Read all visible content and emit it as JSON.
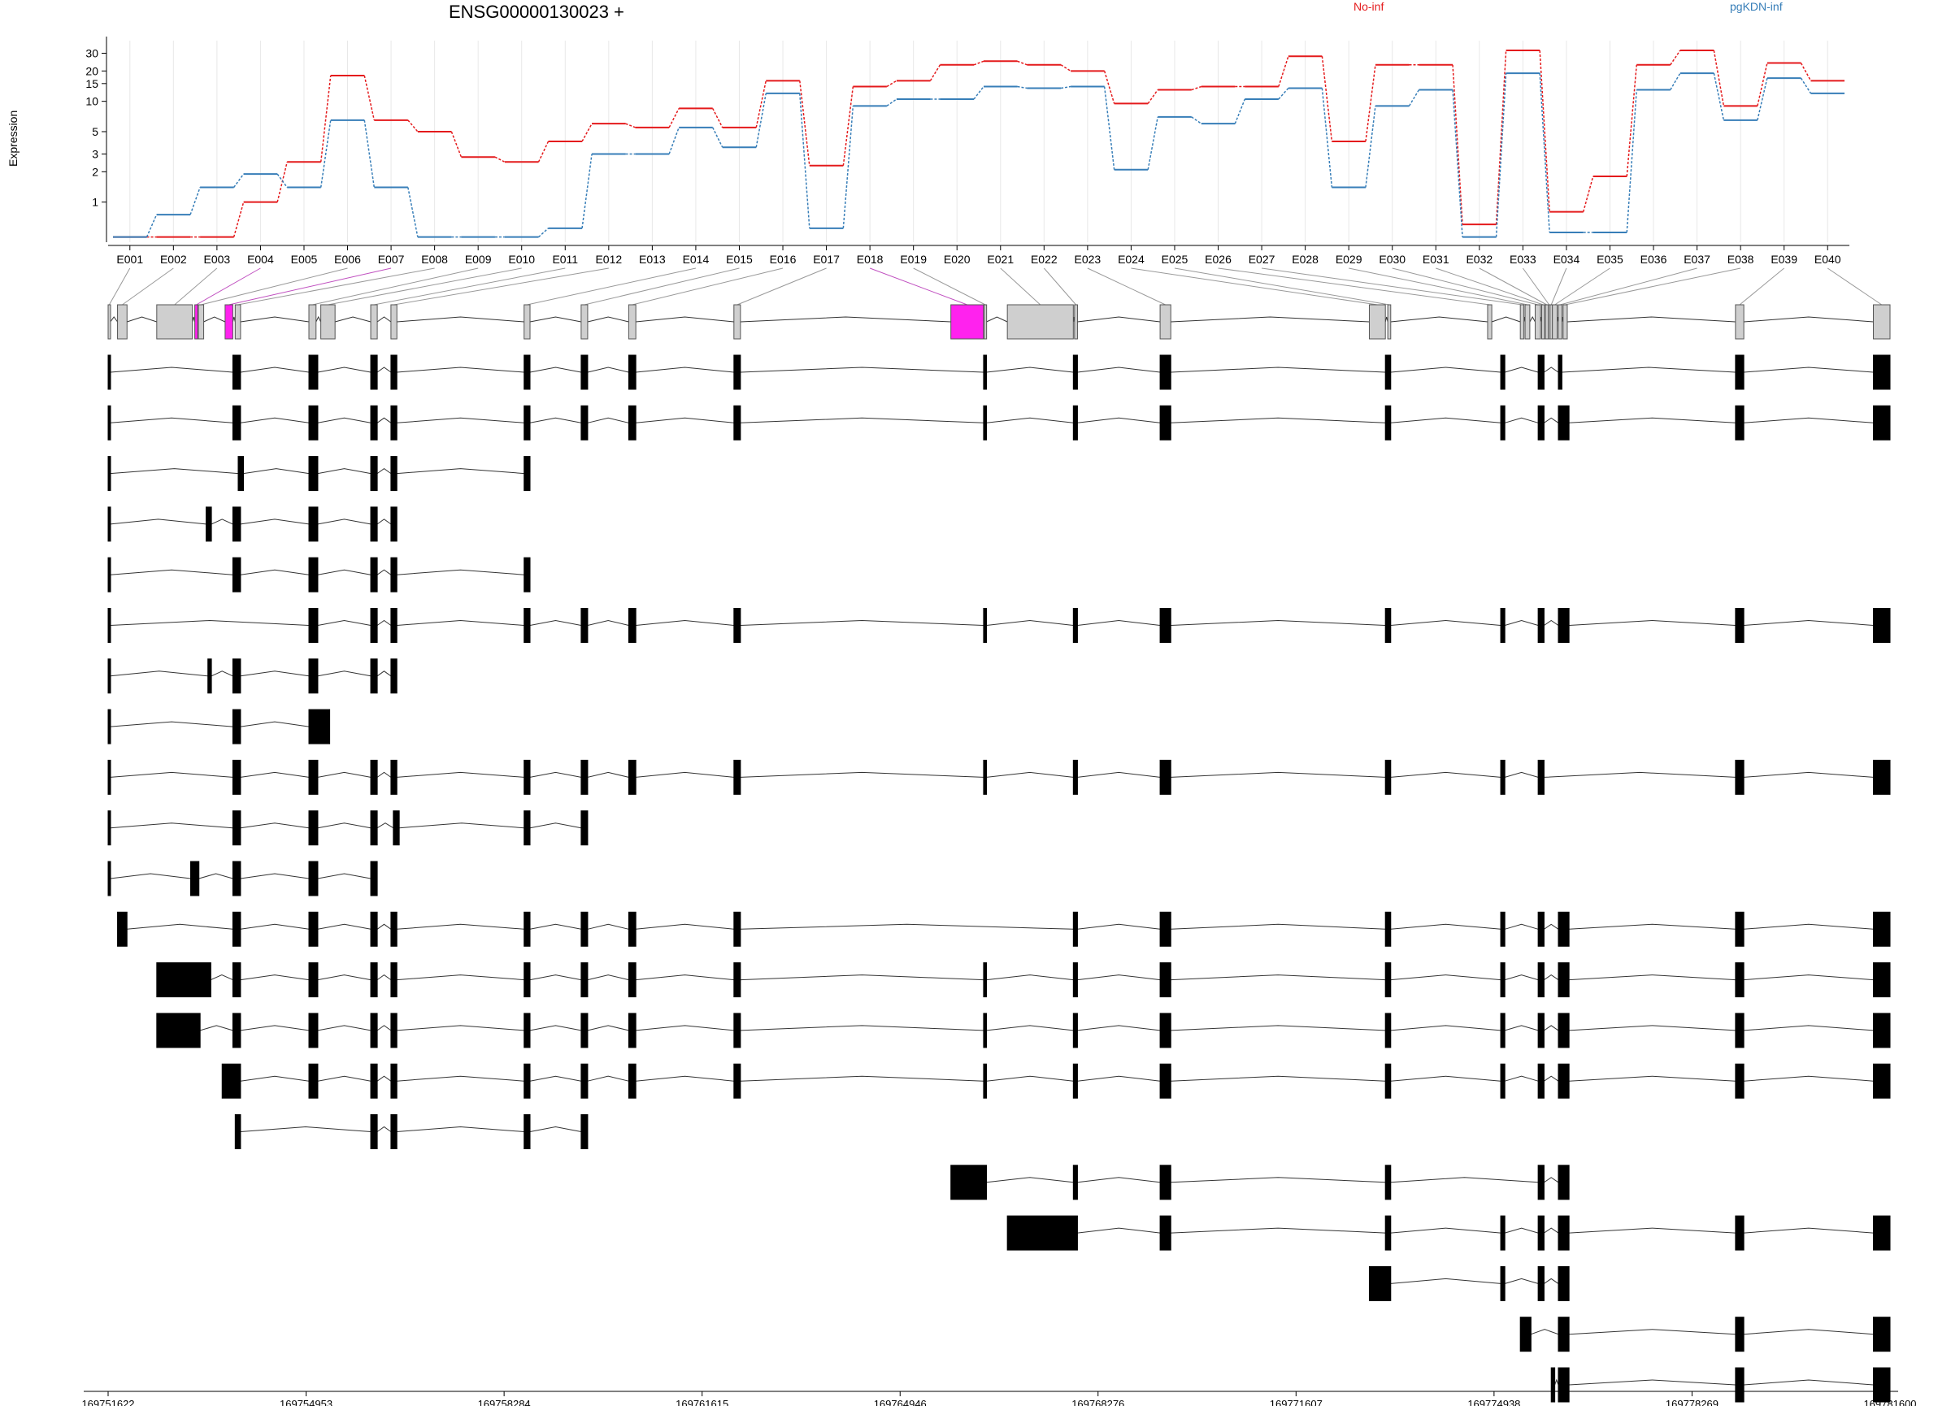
{
  "chart_data": {
    "type": "line",
    "title": "ENSG00000130023 +",
    "ylabel": "Expression",
    "yscale": "log",
    "yticks": [
      1,
      2,
      3,
      5,
      10,
      15,
      20,
      30
    ],
    "ylim": [
      0.4,
      40
    ],
    "legend": [
      {
        "name": "No-inf",
        "color": "#e41a1c"
      },
      {
        "name": "pgKDN-inf",
        "color": "#377eb8"
      }
    ],
    "categories": [
      "E001",
      "E002",
      "E003",
      "E004",
      "E005",
      "E006",
      "E007",
      "E008",
      "E009",
      "E010",
      "E011",
      "E012",
      "E013",
      "E014",
      "E015",
      "E016",
      "E017",
      "E018",
      "E019",
      "E020",
      "E021",
      "E022",
      "E023",
      "E024",
      "E025",
      "E026",
      "E027",
      "E028",
      "E029",
      "E030",
      "E031",
      "E032",
      "E033",
      "E034",
      "E035",
      "E036",
      "E037",
      "E038",
      "E039",
      "E040"
    ],
    "series": [
      {
        "name": "No-inf",
        "values": [
          0.45,
          0.45,
          0.45,
          1.0,
          2.5,
          18,
          6.5,
          5.0,
          2.8,
          2.5,
          4.0,
          6.0,
          5.5,
          8.5,
          5.5,
          16,
          2.3,
          14,
          16,
          23,
          25,
          23,
          20,
          9.5,
          13,
          14,
          14,
          28,
          4.0,
          23,
          23,
          0.6,
          32,
          0.8,
          1.8,
          23,
          32,
          9.0,
          24,
          16
        ]
      },
      {
        "name": "pgKDN-inf",
        "values": [
          0.45,
          0.75,
          1.4,
          1.9,
          1.4,
          6.5,
          1.4,
          0.45,
          0.45,
          0.45,
          0.55,
          3.0,
          3.0,
          5.5,
          3.5,
          12,
          0.55,
          9,
          10.5,
          10.5,
          14,
          13.5,
          14,
          2.1,
          7,
          6,
          10.5,
          13.5,
          1.4,
          9,
          13,
          0.45,
          19,
          0.5,
          0.5,
          13,
          19,
          6.5,
          17,
          12
        ]
      }
    ],
    "genomic_axis": {
      "start": 169751622,
      "end": 169781600,
      "ticks": [
        169751622,
        169754953,
        169758284,
        169761615,
        169764946,
        169768276,
        169771607,
        169774938,
        169778269,
        169781600
      ]
    },
    "exon_bins": [
      [
        169751622,
        169751660
      ],
      [
        169751780,
        169751940
      ],
      [
        169752440,
        169753040
      ],
      [
        169753080,
        169753130
      ],
      [
        169753140,
        169753230
      ],
      [
        169753590,
        169753720
      ],
      [
        169753760,
        169753850
      ],
      [
        169755000,
        169755120
      ],
      [
        169755200,
        169755440
      ],
      [
        169756040,
        169756150
      ],
      [
        169756380,
        169756480
      ],
      [
        169758620,
        169758720
      ],
      [
        169759580,
        169759690
      ],
      [
        169760380,
        169760500
      ],
      [
        169762150,
        169762260
      ],
      [
        169765800,
        169766350
      ],
      [
        169766360,
        169766400
      ],
      [
        169766750,
        169767860
      ],
      [
        169767880,
        169767930
      ],
      [
        169769320,
        169769500
      ],
      [
        169772840,
        169773110
      ],
      [
        169773150,
        169773200
      ],
      [
        169774830,
        169774900
      ],
      [
        169775380,
        169775440
      ],
      [
        169775460,
        169775540
      ],
      [
        169775630,
        169775720
      ],
      [
        169775740,
        169775790
      ],
      [
        169775800,
        169775850
      ],
      [
        169775850,
        169775880
      ],
      [
        169775880,
        169775920
      ],
      [
        169775920,
        169776000
      ],
      [
        169776020,
        169776080
      ],
      [
        169776100,
        169776170
      ],
      [
        169779000,
        169779140
      ],
      [
        169781320,
        169781600
      ]
    ],
    "highlighted_bins": [
      3,
      5,
      15
    ],
    "transcripts": [
      [
        [
          169751622,
          169751660
        ],
        [
          169753720,
          169753850
        ],
        [
          169755000,
          169755150
        ],
        [
          169756040,
          169756150
        ],
        [
          169756380,
          169756480
        ],
        [
          169758620,
          169758720
        ],
        [
          169759580,
          169759690
        ],
        [
          169760380,
          169760500
        ],
        [
          169762150,
          169762260
        ],
        [
          169766350,
          169766400
        ],
        [
          169767860,
          169767930
        ],
        [
          169769320,
          169769500
        ],
        [
          169773110,
          169773200
        ],
        [
          169775050,
          169775120
        ],
        [
          169775680,
          169775780
        ],
        [
          169776020,
          169776080
        ],
        [
          169779000,
          169779140
        ],
        [
          169781320,
          169781600
        ]
      ],
      [
        [
          169751622,
          169751660
        ],
        [
          169753720,
          169753850
        ],
        [
          169755000,
          169755150
        ],
        [
          169756040,
          169756150
        ],
        [
          169756380,
          169756480
        ],
        [
          169758620,
          169758720
        ],
        [
          169759580,
          169759690
        ],
        [
          169760380,
          169760500
        ],
        [
          169762150,
          169762260
        ],
        [
          169766350,
          169766400
        ],
        [
          169767860,
          169767930
        ],
        [
          169769320,
          169769500
        ],
        [
          169773110,
          169773200
        ],
        [
          169775050,
          169775120
        ],
        [
          169775680,
          169775780
        ],
        [
          169776020,
          169776200
        ],
        [
          169779000,
          169779140
        ],
        [
          169781320,
          169781600
        ]
      ],
      [
        [
          169751622,
          169751660
        ],
        [
          169753810,
          169753900
        ],
        [
          169755000,
          169755150
        ],
        [
          169756040,
          169756150
        ],
        [
          169756380,
          169756480
        ],
        [
          169758620,
          169758720
        ]
      ],
      [
        [
          169751622,
          169751660
        ],
        [
          169753270,
          169753360
        ],
        [
          169753720,
          169753850
        ],
        [
          169755000,
          169755150
        ],
        [
          169756040,
          169756150
        ],
        [
          169756380,
          169756480
        ]
      ],
      [
        [
          169751622,
          169751660
        ],
        [
          169753720,
          169753850
        ],
        [
          169755000,
          169755150
        ],
        [
          169756040,
          169756150
        ],
        [
          169756380,
          169756480
        ],
        [
          169758620,
          169758720
        ]
      ],
      [
        [
          169751622,
          169751660
        ],
        [
          169755000,
          169755150
        ],
        [
          169756040,
          169756150
        ],
        [
          169756380,
          169756480
        ],
        [
          169758620,
          169758720
        ],
        [
          169759580,
          169759690
        ],
        [
          169760380,
          169760500
        ],
        [
          169762150,
          169762260
        ],
        [
          169766350,
          169766400
        ],
        [
          169767860,
          169767930
        ],
        [
          169769320,
          169769500
        ],
        [
          169773110,
          169773200
        ],
        [
          169775050,
          169775120
        ],
        [
          169775680,
          169775780
        ],
        [
          169776020,
          169776200
        ],
        [
          169779000,
          169779140
        ],
        [
          169781320,
          169781600
        ]
      ],
      [
        [
          169751622,
          169751660
        ],
        [
          169753300,
          169753360
        ],
        [
          169753720,
          169753850
        ],
        [
          169755000,
          169755150
        ],
        [
          169756040,
          169756150
        ],
        [
          169756380,
          169756480
        ]
      ],
      [
        [
          169751622,
          169751660
        ],
        [
          169753720,
          169753850
        ],
        [
          169755000,
          169755350
        ]
      ],
      [
        [
          169751622,
          169751660
        ],
        [
          169753720,
          169753850
        ],
        [
          169755000,
          169755150
        ],
        [
          169756040,
          169756150
        ],
        [
          169756380,
          169756480
        ],
        [
          169758620,
          169758720
        ],
        [
          169759580,
          169759690
        ],
        [
          169760380,
          169760500
        ],
        [
          169762150,
          169762260
        ],
        [
          169766350,
          169766400
        ],
        [
          169767860,
          169767930
        ],
        [
          169769320,
          169769500
        ],
        [
          169773110,
          169773200
        ],
        [
          169775050,
          169775120
        ],
        [
          169775680,
          169775780
        ],
        [
          169779000,
          169779140
        ],
        [
          169781320,
          169781600
        ]
      ],
      [
        [
          169751622,
          169751660
        ],
        [
          169753720,
          169753850
        ],
        [
          169755000,
          169755150
        ],
        [
          169756040,
          169756150
        ],
        [
          169756420,
          169756520
        ],
        [
          169758620,
          169758720
        ],
        [
          169759580,
          169759690
        ]
      ],
      [
        [
          169751622,
          169751660
        ],
        [
          169753010,
          169753150
        ],
        [
          169753720,
          169753850
        ],
        [
          169755000,
          169755150
        ],
        [
          169756040,
          169756150
        ]
      ],
      [
        [
          169751780,
          169751940
        ],
        [
          169753720,
          169753850
        ],
        [
          169755000,
          169755150
        ],
        [
          169756040,
          169756150
        ],
        [
          169756380,
          169756480
        ],
        [
          169758620,
          169758720
        ],
        [
          169759580,
          169759690
        ],
        [
          169760380,
          169760500
        ],
        [
          169762150,
          169762260
        ],
        [
          169767860,
          169767930
        ],
        [
          169769320,
          169769500
        ],
        [
          169773110,
          169773200
        ],
        [
          169775050,
          169775120
        ],
        [
          169775680,
          169775780
        ],
        [
          169776020,
          169776200
        ],
        [
          169779000,
          169779140
        ],
        [
          169781320,
          169781600
        ]
      ],
      [
        [
          169752440,
          169753350
        ],
        [
          169753720,
          169753850
        ],
        [
          169755000,
          169755150
        ],
        [
          169756040,
          169756150
        ],
        [
          169756380,
          169756480
        ],
        [
          169758620,
          169758720
        ],
        [
          169759580,
          169759690
        ],
        [
          169760380,
          169760500
        ],
        [
          169762150,
          169762260
        ],
        [
          169766350,
          169766400
        ],
        [
          169767860,
          169767930
        ],
        [
          169769320,
          169769500
        ],
        [
          169773110,
          169773200
        ],
        [
          169775050,
          169775120
        ],
        [
          169775680,
          169775780
        ],
        [
          169776020,
          169776200
        ],
        [
          169779000,
          169779140
        ],
        [
          169781320,
          169781600
        ]
      ],
      [
        [
          169752440,
          169753170
        ],
        [
          169753720,
          169753850
        ],
        [
          169755000,
          169755150
        ],
        [
          169756040,
          169756150
        ],
        [
          169756380,
          169756480
        ],
        [
          169758620,
          169758720
        ],
        [
          169759580,
          169759690
        ],
        [
          169760380,
          169760500
        ],
        [
          169762150,
          169762260
        ],
        [
          169766350,
          169766400
        ],
        [
          169767860,
          169767930
        ],
        [
          169769320,
          169769500
        ],
        [
          169773110,
          169773200
        ],
        [
          169775050,
          169775120
        ],
        [
          169775680,
          169775780
        ],
        [
          169776020,
          169776200
        ],
        [
          169779000,
          169779140
        ],
        [
          169781320,
          169781600
        ]
      ],
      [
        [
          169753540,
          169753850
        ],
        [
          169755000,
          169755150
        ],
        [
          169756040,
          169756150
        ],
        [
          169756380,
          169756480
        ],
        [
          169758620,
          169758720
        ],
        [
          169759580,
          169759690
        ],
        [
          169760380,
          169760500
        ],
        [
          169762150,
          169762260
        ],
        [
          169766350,
          169766400
        ],
        [
          169767860,
          169767930
        ],
        [
          169769320,
          169769500
        ],
        [
          169773110,
          169773200
        ],
        [
          169775050,
          169775120
        ],
        [
          169775680,
          169775780
        ],
        [
          169776020,
          169776200
        ],
        [
          169779000,
          169779140
        ],
        [
          169781320,
          169781600
        ]
      ],
      [
        [
          169753760,
          169753850
        ],
        [
          169756040,
          169756150
        ],
        [
          169756380,
          169756480
        ],
        [
          169758620,
          169758720
        ],
        [
          169759580,
          169759690
        ]
      ],
      [
        [
          169765800,
          169766400
        ],
        [
          169767860,
          169767930
        ],
        [
          169769320,
          169769500
        ],
        [
          169773110,
          169773200
        ],
        [
          169775680,
          169775780
        ],
        [
          169776020,
          169776200
        ]
      ],
      [
        [
          169766750,
          169767930
        ],
        [
          169769320,
          169769500
        ],
        [
          169773110,
          169773200
        ],
        [
          169775050,
          169775120
        ],
        [
          169775680,
          169775780
        ],
        [
          169776020,
          169776200
        ],
        [
          169779000,
          169779140
        ],
        [
          169781320,
          169781600
        ]
      ],
      [
        [
          169772840,
          169773200
        ],
        [
          169775050,
          169775120
        ],
        [
          169775680,
          169775780
        ],
        [
          169776020,
          169776200
        ]
      ],
      [
        [
          169775380,
          169775560
        ],
        [
          169776020,
          169776200
        ],
        [
          169779000,
          169779140
        ],
        [
          169781320,
          169781600
        ]
      ],
      [
        [
          169775900,
          169775960
        ],
        [
          169776020,
          169776200
        ],
        [
          169779000,
          169779140
        ],
        [
          169781320,
          169781600
        ]
      ]
    ]
  }
}
